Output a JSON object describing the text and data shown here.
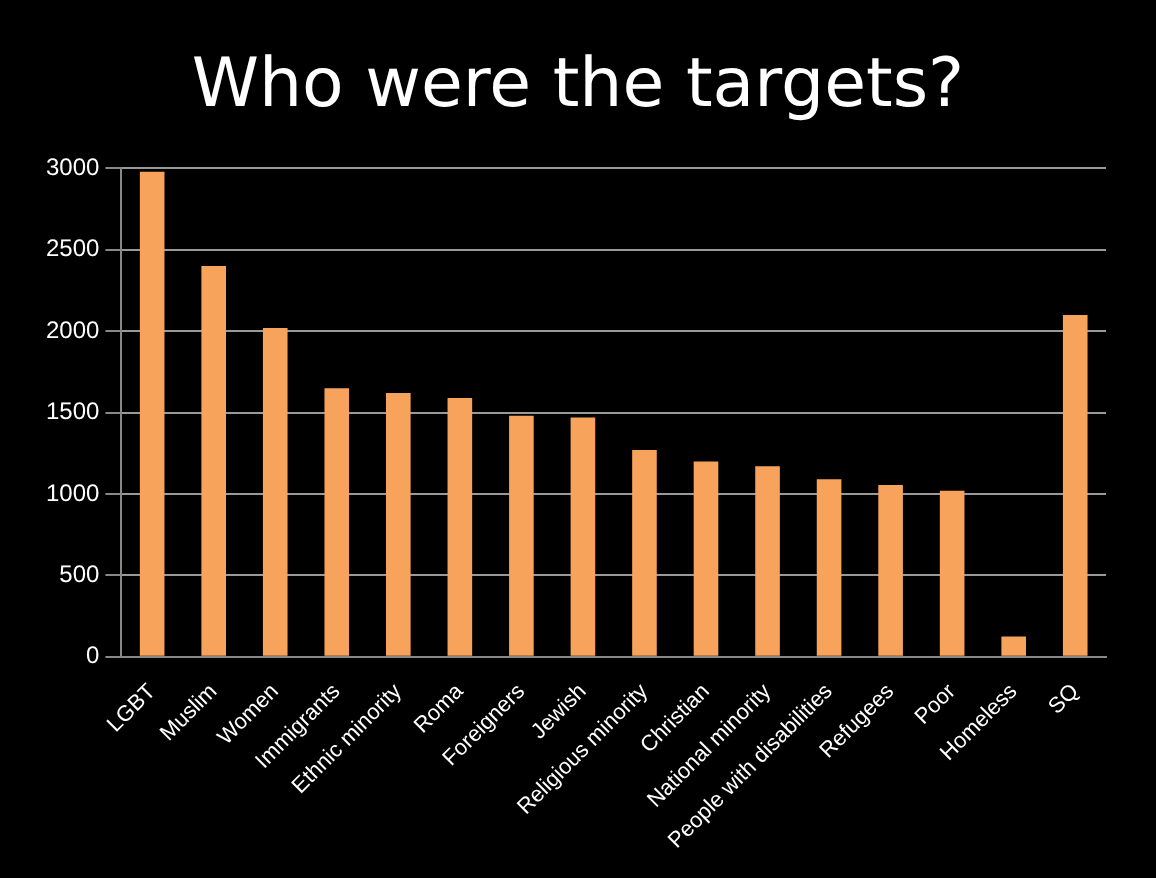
{
  "chart_data": {
    "type": "bar",
    "title": "Who were the targets?",
    "categories": [
      "LGBT",
      "Muslim",
      "Women",
      "Immigrants",
      "Ethnic minority",
      "Roma",
      "Foreigners",
      "Jewish",
      "Religious minority",
      "Christian",
      "National minority",
      "People with disabilities",
      "Refugees",
      "Poor",
      "Homeless",
      "SQ"
    ],
    "values": [
      2980,
      2400,
      2020,
      1650,
      1620,
      1590,
      1480,
      1470,
      1270,
      1200,
      1170,
      1090,
      1055,
      1020,
      125,
      2100
    ],
    "color": "#f7a35c",
    "ylim": [
      0,
      3000
    ],
    "yticks": [
      0,
      500,
      1000,
      1500,
      2000,
      2500,
      3000
    ],
    "grid": "y",
    "legend": false
  }
}
